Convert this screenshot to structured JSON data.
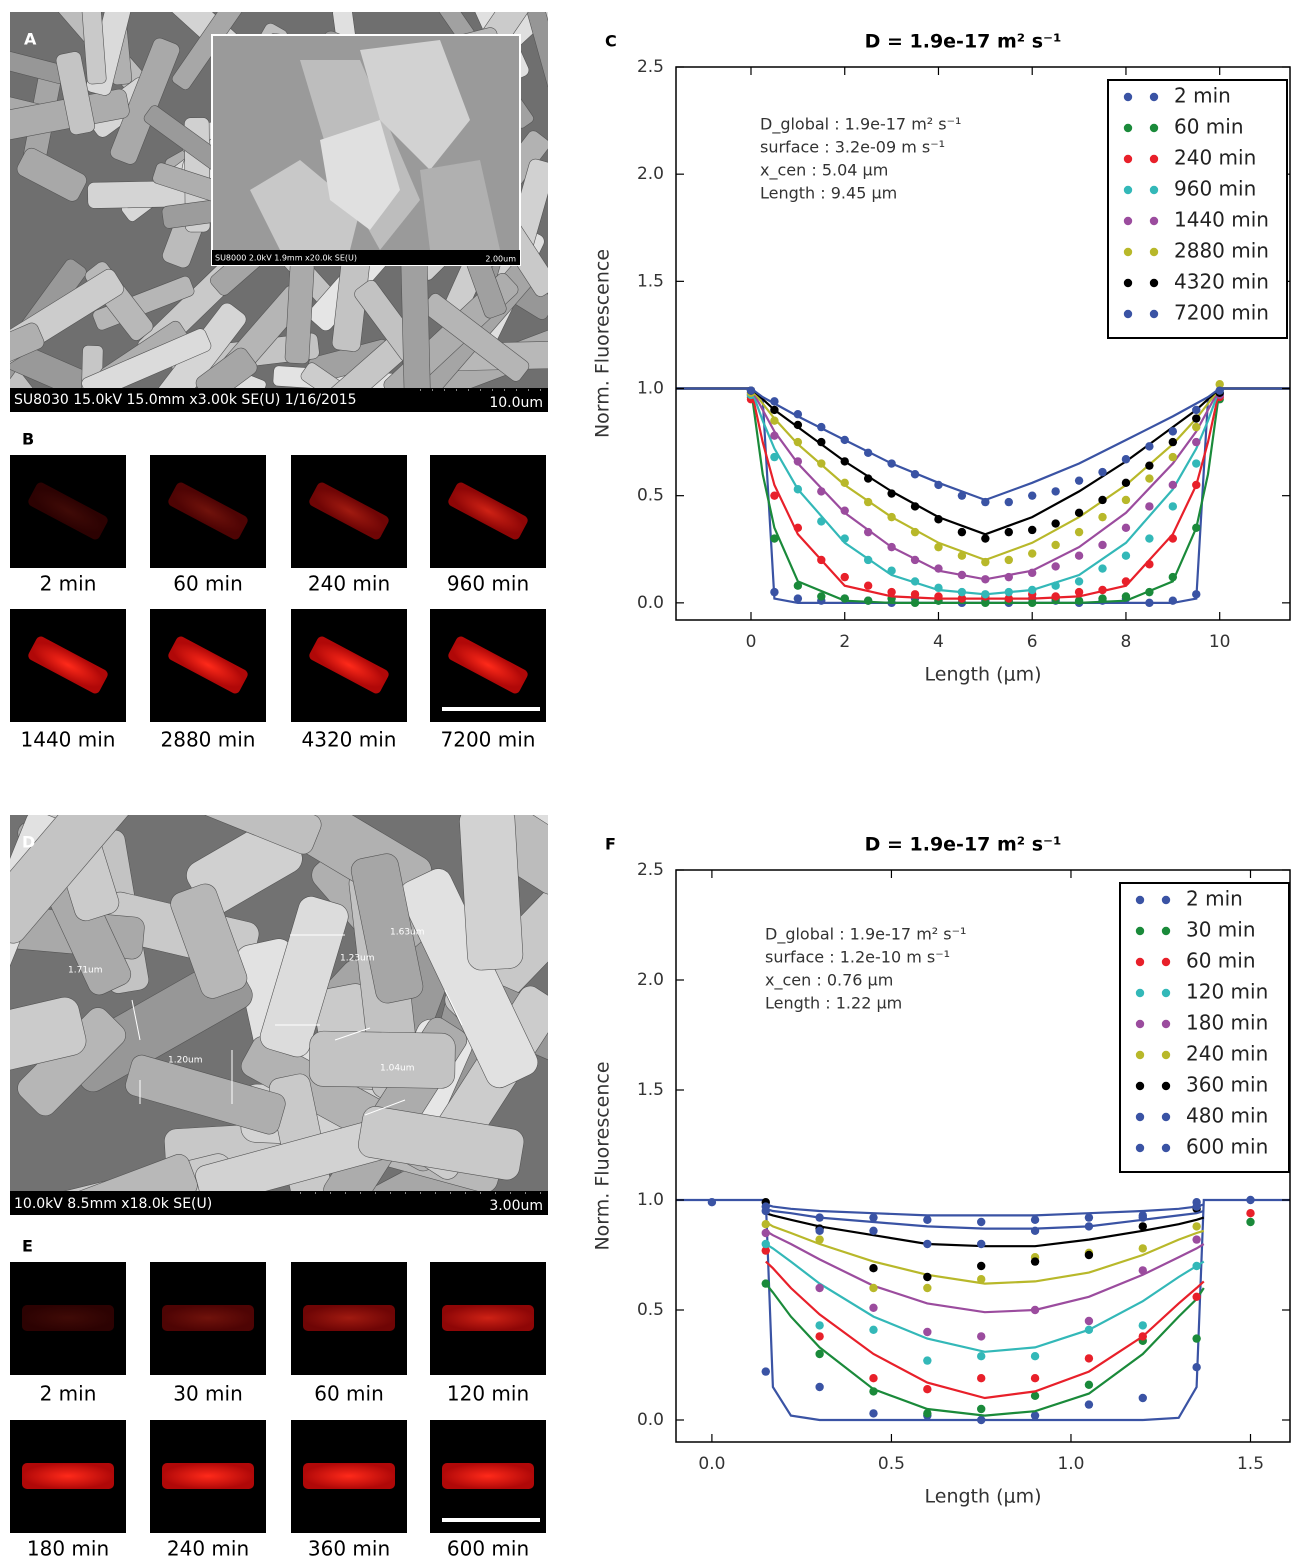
{
  "panels": [
    {
      "label": "A",
      "caption": "SU8030 15.0kV 15.0mm x3.00k SE(U) 1/16/2015",
      "scale": "10.0um",
      "inset_caption": "SU8000 2.0kV 1.9mm x20.0k SE(U)",
      "inset_scale": "2.00um"
    },
    {
      "label": "B",
      "times": [
        "2 min",
        "60 min",
        "240 min",
        "960 min",
        "1440 min",
        "2880 min",
        "4320 min",
        "7200 min"
      ]
    },
    {
      "label": "D",
      "caption": "10.0kV 8.5mm x18.0k SE(U)",
      "scale": "3.00um",
      "measurements": [
        "1.71um",
        "1.23um",
        "1.63um",
        "1.20um",
        "1.04um"
      ]
    },
    {
      "label": "E",
      "times": [
        "2 min",
        "30 min",
        "60 min",
        "120 min",
        "180 min",
        "240 min",
        "360 min",
        "600 min"
      ]
    }
  ],
  "chart_data": [
    {
      "type": "scatter",
      "panel": "C",
      "title": "D = 1.9e-17 m² s⁻¹",
      "annotation": [
        "D_global : 1.9e-17 m² s⁻¹",
        "surface : 3.2e-09 m s⁻¹",
        "x_cen : 5.04 μm",
        "Length : 9.45 μm"
      ],
      "x_label": "Length (μm)",
      "y_label": "Norm. Fluorescence",
      "xlim": [
        -1.6,
        11.5
      ],
      "xticks": [
        0,
        2,
        4,
        6,
        8,
        10
      ],
      "ylim": [
        -0.08,
        2.5
      ],
      "yticks": [
        {
          "value": 0,
          "label": "0.0"
        },
        0.5,
        {
          "value": 1,
          "label": "1.0"
        },
        1.5,
        {
          "value": 2,
          "label": "2.0"
        },
        2.5
      ],
      "grid": false,
      "legend": "upper right",
      "x": [
        0,
        0.5,
        1,
        1.5,
        2,
        2.5,
        3,
        3.5,
        4,
        4.5,
        5,
        5.5,
        6,
        6.5,
        7,
        7.5,
        8,
        8.5,
        9,
        9.5,
        10
      ],
      "fit_x": [
        -1.6,
        0,
        0.25,
        0.5,
        1,
        2,
        3,
        4,
        5,
        6,
        7,
        8,
        9,
        9.5,
        9.75,
        10,
        11.5
      ],
      "series": [
        {
          "name": "2 min",
          "color": "#3a53a4",
          "values": [
            0.97,
            0.05,
            0.02,
            0.01,
            0.02,
            0.01,
            0.0,
            0.02,
            0.01,
            0.0,
            0.01,
            0.0,
            0.02,
            0.01,
            0.0,
            0.01,
            0.02,
            0.0,
            0.01,
            0.04,
            0.97
          ],
          "fit": [
            1,
            1,
            0.95,
            0.02,
            0,
            0,
            0,
            0,
            0,
            0,
            0,
            0,
            0,
            0.02,
            0.95,
            1,
            1
          ]
        },
        {
          "name": "60 min",
          "color": "#1a8a3a",
          "values": [
            0.96,
            0.3,
            0.08,
            0.03,
            0.02,
            0.01,
            0.02,
            0.0,
            0.01,
            0.02,
            0.0,
            0.01,
            0.0,
            0.02,
            0.01,
            0.02,
            0.03,
            0.05,
            0.12,
            0.35,
            0.95
          ],
          "fit": [
            1,
            1,
            0.6,
            0.35,
            0.1,
            0.01,
            0,
            0,
            0,
            0,
            0,
            0.01,
            0.1,
            0.35,
            0.6,
            1,
            1
          ]
        },
        {
          "name": "240 min",
          "color": "#e8202a",
          "values": [
            0.95,
            0.5,
            0.35,
            0.2,
            0.12,
            0.08,
            0.05,
            0.04,
            0.03,
            0.02,
            0.03,
            0.02,
            0.04,
            0.03,
            0.05,
            0.06,
            0.1,
            0.18,
            0.3,
            0.55,
            0.96
          ],
          "fit": [
            1,
            1,
            0.75,
            0.55,
            0.32,
            0.08,
            0.03,
            0.02,
            0.02,
            0.02,
            0.03,
            0.08,
            0.32,
            0.55,
            0.75,
            1,
            1
          ]
        },
        {
          "name": "960 min",
          "color": "#33b8b8",
          "values": [
            0.97,
            0.68,
            0.53,
            0.38,
            0.3,
            0.2,
            0.15,
            0.1,
            0.07,
            0.05,
            0.04,
            0.05,
            0.06,
            0.08,
            0.1,
            0.16,
            0.22,
            0.3,
            0.45,
            0.65,
            0.98
          ],
          "fit": [
            1,
            1,
            0.85,
            0.72,
            0.53,
            0.28,
            0.13,
            0.06,
            0.04,
            0.06,
            0.13,
            0.28,
            0.53,
            0.72,
            0.85,
            1,
            1
          ]
        },
        {
          "name": "1440 min",
          "color": "#9b4c9e",
          "values": [
            0.98,
            0.78,
            0.66,
            0.52,
            0.43,
            0.33,
            0.26,
            0.2,
            0.16,
            0.13,
            0.11,
            0.12,
            0.14,
            0.17,
            0.22,
            0.27,
            0.35,
            0.45,
            0.55,
            0.75,
            0.97
          ],
          "fit": [
            1,
            1,
            0.9,
            0.8,
            0.65,
            0.42,
            0.26,
            0.15,
            0.11,
            0.15,
            0.26,
            0.42,
            0.65,
            0.8,
            0.9,
            1,
            1
          ]
        },
        {
          "name": "2880 min",
          "color": "#b8b82a",
          "values": [
            0.98,
            0.85,
            0.75,
            0.65,
            0.56,
            0.47,
            0.4,
            0.33,
            0.26,
            0.22,
            0.19,
            0.2,
            0.23,
            0.27,
            0.33,
            0.4,
            0.48,
            0.58,
            0.68,
            0.82,
            1.02
          ],
          "fit": [
            1,
            1,
            0.93,
            0.86,
            0.74,
            0.55,
            0.4,
            0.28,
            0.2,
            0.28,
            0.4,
            0.55,
            0.74,
            0.86,
            0.93,
            1,
            1
          ]
        },
        {
          "name": "4320 min",
          "color": "#000000",
          "values": [
            0.99,
            0.9,
            0.83,
            0.75,
            0.66,
            0.58,
            0.51,
            0.45,
            0.39,
            0.33,
            0.3,
            0.33,
            0.34,
            0.37,
            0.42,
            0.48,
            0.56,
            0.64,
            0.75,
            0.86,
            0.98
          ],
          "fit": [
            1,
            1,
            0.95,
            0.9,
            0.82,
            0.66,
            0.52,
            0.4,
            0.32,
            0.4,
            0.52,
            0.66,
            0.82,
            0.9,
            0.95,
            1,
            1
          ]
        },
        {
          "name": "7200 min",
          "color": "#3a53a4",
          "values": [
            0.99,
            0.94,
            0.88,
            0.82,
            0.76,
            0.7,
            0.65,
            0.6,
            0.55,
            0.5,
            0.47,
            0.47,
            0.5,
            0.52,
            0.57,
            0.61,
            0.67,
            0.73,
            0.8,
            0.9,
            0.99
          ],
          "fit": [
            1,
            1,
            0.96,
            0.93,
            0.87,
            0.76,
            0.65,
            0.56,
            0.48,
            0.56,
            0.65,
            0.76,
            0.87,
            0.93,
            0.96,
            1,
            1
          ]
        }
      ]
    },
    {
      "type": "scatter",
      "panel": "F",
      "title": "D = 1.9e-17 m² s⁻¹",
      "annotation": [
        "D_global : 1.9e-17 m² s⁻¹",
        "surface : 1.2e-10 m s⁻¹",
        "x_cen : 0.76 μm",
        "Length : 1.22 μm"
      ],
      "x_label": "Length (μm)",
      "y_label": "Norm. Fluorescence",
      "xlim": [
        -0.1,
        1.61
      ],
      "xticks": [
        {
          "value": 0,
          "label": "0.0"
        },
        0.5,
        {
          "value": 1,
          "label": "1.0"
        },
        1.5
      ],
      "ylim": [
        -0.1,
        2.5
      ],
      "yticks": [
        {
          "value": 0,
          "label": "0.0"
        },
        0.5,
        {
          "value": 1,
          "label": "1.0"
        },
        1.5,
        {
          "value": 2,
          "label": "2.0"
        },
        2.5
      ],
      "grid": false,
      "legend": "upper right",
      "x": [
        0,
        0.15,
        0.3,
        0.45,
        0.6,
        0.75,
        0.9,
        1.05,
        1.2,
        1.35,
        1.5
      ],
      "fit_x": [
        -0.1,
        0.15,
        0.17,
        0.22,
        0.3,
        0.45,
        0.6,
        0.76,
        0.9,
        1.05,
        1.2,
        1.3,
        1.35,
        1.37,
        1.61
      ],
      "series": [
        {
          "name": "2 min",
          "color": "#3a53a4",
          "values": [
            0.99,
            0.22,
            0.15,
            0.03,
            0.02,
            0.0,
            0.02,
            0.07,
            0.1,
            0.24,
            1.0
          ],
          "fit": [
            1,
            1,
            0.15,
            0.02,
            0,
            0,
            0,
            0,
            0,
            0,
            0,
            0.01,
            0.15,
            1,
            1
          ]
        },
        {
          "name": "30 min",
          "color": "#1a8a3a",
          "values": [
            null,
            0.62,
            0.3,
            0.13,
            0.03,
            0.05,
            0.11,
            0.16,
            0.36,
            0.37,
            0.9
          ],
          "fit": [
            null,
            0.62,
            0.58,
            0.47,
            0.33,
            0.14,
            0.05,
            0.02,
            0.04,
            0.12,
            0.3,
            0.47,
            0.55,
            0.6,
            null
          ]
        },
        {
          "name": "60 min",
          "color": "#e8202a",
          "values": [
            null,
            0.77,
            0.38,
            0.19,
            0.14,
            0.19,
            0.19,
            0.28,
            0.38,
            0.56,
            0.94
          ],
          "fit": [
            null,
            0.72,
            0.69,
            0.6,
            0.48,
            0.3,
            0.17,
            0.1,
            0.13,
            0.22,
            0.38,
            0.53,
            0.6,
            0.63,
            null
          ]
        },
        {
          "name": "120 min",
          "color": "#33b8b8",
          "values": [
            null,
            0.8,
            0.43,
            0.41,
            0.27,
            0.29,
            0.29,
            0.41,
            0.43,
            0.7,
            null
          ],
          "fit": [
            null,
            0.8,
            0.78,
            0.72,
            0.62,
            0.47,
            0.37,
            0.31,
            0.33,
            0.41,
            0.54,
            0.65,
            0.7,
            0.72,
            null
          ]
        },
        {
          "name": "180 min",
          "color": "#9b4c9e",
          "values": [
            null,
            0.85,
            0.6,
            0.51,
            0.4,
            0.38,
            0.5,
            0.45,
            0.68,
            0.82,
            null
          ],
          "fit": [
            null,
            0.86,
            0.84,
            0.8,
            0.73,
            0.61,
            0.53,
            0.49,
            0.5,
            0.56,
            0.66,
            0.74,
            0.78,
            0.8,
            null
          ]
        },
        {
          "name": "240 min",
          "color": "#b8b82a",
          "values": [
            null,
            0.89,
            0.82,
            0.6,
            0.6,
            0.64,
            0.74,
            0.76,
            0.78,
            0.88,
            null
          ],
          "fit": [
            null,
            0.9,
            0.88,
            0.85,
            0.8,
            0.72,
            0.66,
            0.62,
            0.63,
            0.67,
            0.75,
            0.82,
            0.85,
            0.86,
            null
          ]
        },
        {
          "name": "360 min",
          "color": "#000000",
          "values": [
            null,
            0.99,
            0.87,
            0.69,
            0.65,
            0.7,
            0.72,
            0.75,
            0.88,
            0.96,
            null
          ],
          "fit": [
            null,
            0.94,
            0.93,
            0.91,
            0.88,
            0.84,
            0.8,
            0.79,
            0.79,
            0.82,
            0.86,
            0.89,
            0.91,
            0.92,
            null
          ]
        },
        {
          "name": "480 min",
          "color": "#3a53a4",
          "values": [
            null,
            0.97,
            0.86,
            0.86,
            0.8,
            0.8,
            0.86,
            0.88,
            0.92,
            0.97,
            null
          ],
          "fit": [
            null,
            0.96,
            0.95,
            0.94,
            0.92,
            0.9,
            0.88,
            0.87,
            0.87,
            0.88,
            0.91,
            0.93,
            0.94,
            0.95,
            null
          ]
        },
        {
          "name": "600 min",
          "color": "#3a53a4",
          "values": [
            null,
            0.95,
            0.92,
            0.92,
            0.91,
            0.9,
            0.91,
            0.92,
            0.93,
            0.99,
            null
          ],
          "fit": [
            null,
            0.98,
            0.97,
            0.96,
            0.95,
            0.94,
            0.93,
            0.93,
            0.93,
            0.94,
            0.95,
            0.96,
            0.97,
            0.98,
            null
          ]
        }
      ]
    }
  ]
}
